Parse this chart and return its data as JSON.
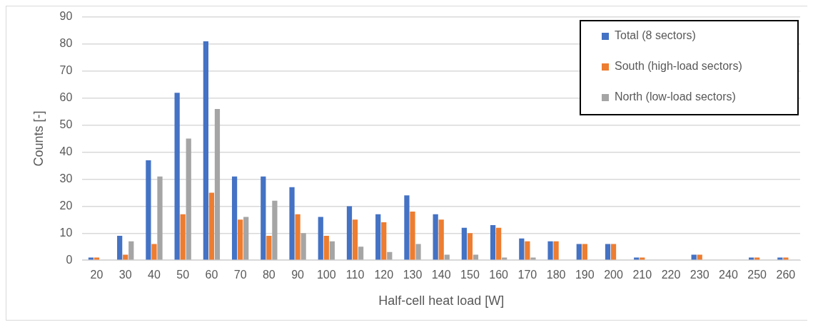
{
  "chart_data": {
    "type": "bar",
    "xlabel": "Half-cell heat load [W]",
    "ylabel": "Counts [-]",
    "categories": [
      "20",
      "30",
      "40",
      "50",
      "60",
      "70",
      "80",
      "90",
      "100",
      "110",
      "120",
      "130",
      "140",
      "150",
      "160",
      "170",
      "180",
      "190",
      "200",
      "210",
      "220",
      "230",
      "240",
      "250",
      "260"
    ],
    "series": [
      {
        "name": "Total (8 sectors)",
        "color": "#4472c4",
        "values": [
          1,
          9,
          37,
          62,
          81,
          31,
          31,
          27,
          16,
          20,
          17,
          24,
          17,
          12,
          13,
          8,
          7,
          6,
          6,
          1,
          0,
          2,
          0,
          1,
          1
        ]
      },
      {
        "name": "South (high-load sectors)",
        "color": "#ed7d31",
        "values": [
          1,
          2,
          6,
          17,
          25,
          15,
          9,
          17,
          9,
          15,
          14,
          18,
          15,
          10,
          12,
          7,
          7,
          6,
          6,
          1,
          0,
          2,
          0,
          1,
          1
        ]
      },
      {
        "name": "North (low-load sectors)",
        "color": "#a5a5a5",
        "values": [
          0,
          7,
          31,
          45,
          56,
          16,
          22,
          10,
          7,
          5,
          3,
          6,
          2,
          2,
          1,
          1,
          0,
          0,
          0,
          0,
          0,
          0,
          0,
          0,
          0
        ]
      }
    ],
    "ylim": [
      0,
      90
    ],
    "yticks": [
      0,
      10,
      20,
      30,
      40,
      50,
      60,
      70,
      80,
      90
    ],
    "grid": "y",
    "legend": "top right"
  }
}
